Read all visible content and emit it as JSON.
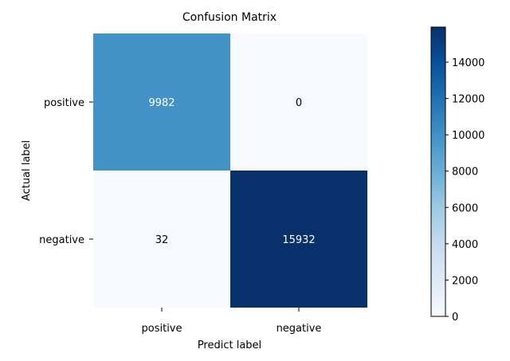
{
  "chart_data": {
    "type": "heatmap",
    "title": "Confusion Matrix",
    "xlabel": "Predict label",
    "ylabel": "Actual label",
    "x_categories": [
      "positive",
      "negative"
    ],
    "y_categories": [
      "positive",
      "negative"
    ],
    "values": [
      [
        9982,
        0
      ],
      [
        32,
        15932
      ]
    ],
    "colormap": "Blues",
    "color_range": [
      0,
      15932
    ],
    "colorbar_ticks": [
      0,
      2000,
      4000,
      6000,
      8000,
      10000,
      12000,
      14000
    ],
    "colors": {
      "low": "#f7fbff",
      "high": "#08306b"
    }
  }
}
